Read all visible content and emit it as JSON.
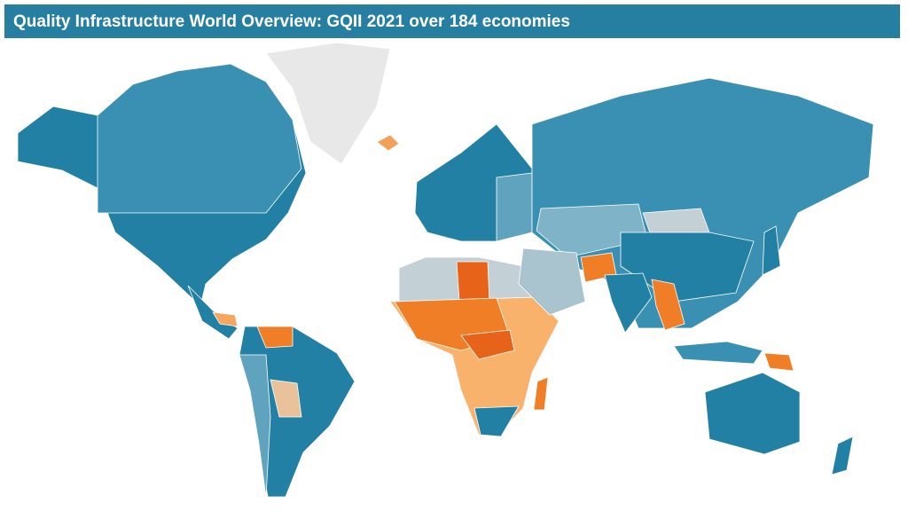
{
  "header": {
    "title": "Quality Infrastructure World Overview: GQII 2021 over 184 economies"
  }
}
